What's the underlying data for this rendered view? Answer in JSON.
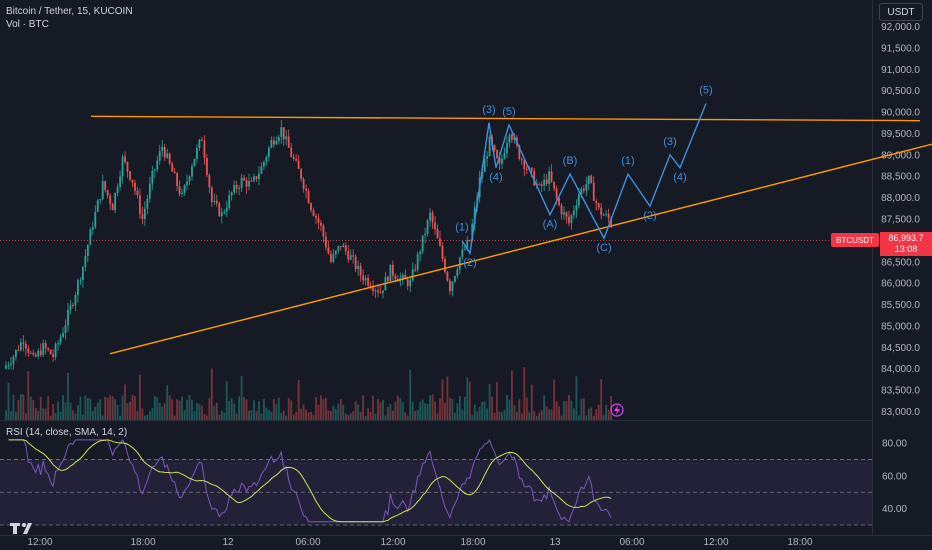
{
  "header": {
    "title": "Bitcoin / Tether, 15, KUCOIN",
    "volume_label": "Vol · BTC",
    "currency_button": "USDT"
  },
  "current": {
    "symbol": "BTCUSDT",
    "price": "86,993.7",
    "countdown": "13:08"
  },
  "rsi_label": "RSI (14, close, SMA, 14, 2)",
  "colors": {
    "background": "#161a25",
    "up": "#26a69a",
    "down": "#ef5350",
    "trendline": "#ff9800",
    "wave": "#3d8fe0",
    "rsi": "#7e57c2",
    "rsi_ma": "#d4e157"
  },
  "chart_data": [
    {
      "type": "candlestick",
      "title": "Bitcoin / Tether, 15, KUCOIN",
      "y_ticks": [
        "92,000.0",
        "91,500.0",
        "91,000.0",
        "90,500.0",
        "90,000.0",
        "89,500.0",
        "89,000.0",
        "88,500.0",
        "88,000.0",
        "87,500.0",
        "87,000.0",
        "86,500.0",
        "86,000.0",
        "85,500.0",
        "85,000.0",
        "84,500.0",
        "84,000.0",
        "83,500.0",
        "83,000.0"
      ],
      "ylim": [
        82800,
        92200
      ],
      "x_ticks": [
        "12:00",
        "18:00",
        "12",
        "06:00",
        "12:00",
        "18:00",
        "13",
        "06:00",
        "12:00",
        "18:00"
      ],
      "price_path": [
        [
          0,
          84000
        ],
        [
          4,
          84300
        ],
        [
          8,
          84700
        ],
        [
          12,
          84200
        ],
        [
          16,
          84500
        ],
        [
          20,
          84300
        ],
        [
          24,
          84900
        ],
        [
          28,
          85600
        ],
        [
          32,
          86400
        ],
        [
          36,
          87400
        ],
        [
          40,
          88300
        ],
        [
          44,
          87800
        ],
        [
          48,
          88900
        ],
        [
          52,
          88400
        ],
        [
          56,
          87500
        ],
        [
          60,
          88500
        ],
        [
          64,
          89200
        ],
        [
          68,
          88600
        ],
        [
          72,
          88000
        ],
        [
          76,
          88800
        ],
        [
          80,
          89400
        ],
        [
          84,
          87900
        ],
        [
          88,
          87600
        ],
        [
          92,
          88100
        ],
        [
          96,
          88400
        ],
        [
          100,
          88300
        ],
        [
          104,
          88700
        ],
        [
          108,
          89300
        ],
        [
          112,
          89600
        ],
        [
          116,
          89000
        ],
        [
          120,
          88500
        ],
        [
          124,
          87800
        ],
        [
          128,
          87300
        ],
        [
          132,
          86500
        ],
        [
          136,
          86900
        ],
        [
          140,
          86600
        ],
        [
          144,
          86200
        ],
        [
          148,
          86000
        ],
        [
          152,
          85800
        ],
        [
          156,
          86300
        ],
        [
          160,
          86100
        ],
        [
          164,
          86000
        ],
        [
          168,
          86800
        ],
        [
          172,
          87600
        ],
        [
          176,
          86800
        ],
        [
          180,
          85900
        ],
        [
          184,
          86600
        ],
        [
          188,
          87000
        ],
        [
          192,
          88400
        ],
        [
          196,
          89300
        ],
        [
          200,
          88700
        ],
        [
          204,
          89600
        ],
        [
          208,
          89000
        ],
        [
          212,
          88600
        ],
        [
          216,
          88200
        ],
        [
          220,
          88500
        ],
        [
          224,
          87800
        ],
        [
          228,
          87400
        ],
        [
          232,
          88100
        ],
        [
          236,
          88400
        ],
        [
          240,
          87700
        ],
        [
          244,
          87500
        ],
        [
          248,
          87200
        ],
        [
          252,
          87000
        ]
      ],
      "trendlines": [
        {
          "name": "resistance",
          "points": [
            [
              91,
              89900
            ],
            [
              920,
              89800
            ]
          ]
        },
        {
          "name": "support",
          "points": [
            [
              110,
              84350
            ],
            [
              932,
              89250
            ]
          ]
        }
      ],
      "elliott_wave": {
        "labels": [
          "(1)",
          "(2)",
          "(3)",
          "(4)",
          "(5)",
          "(A)",
          "(B)",
          "(C)",
          "(1)",
          "(2)",
          "(3)",
          "(4)",
          "(5)"
        ],
        "path": [
          [
            86992,
            0
          ],
          [
            86700,
            1
          ],
          [
            89750,
            2
          ],
          [
            88700,
            3
          ],
          [
            89700,
            4
          ],
          [
            87600,
            5
          ],
          [
            88550,
            6
          ],
          [
            87050,
            7
          ],
          [
            88550,
            8
          ],
          [
            87800,
            9
          ],
          [
            89000,
            10
          ],
          [
            88700,
            11
          ],
          [
            90200,
            12
          ]
        ]
      },
      "volume_scale": "Vol · BTC",
      "rsi": {
        "y_ticks": [
          "80.00",
          "60.00",
          "40.00"
        ],
        "ylim": [
          30,
          85
        ],
        "upper": 70,
        "middle": 50,
        "lower": 30
      }
    }
  ]
}
